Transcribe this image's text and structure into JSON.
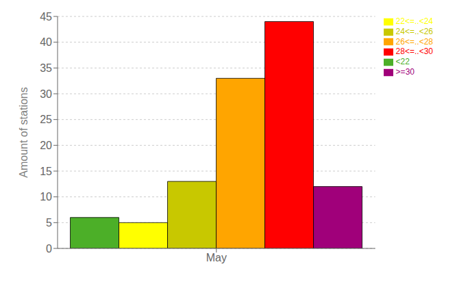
{
  "chart_data": {
    "type": "bar",
    "categories": [
      "May"
    ],
    "series": [
      {
        "name": "<22",
        "color": "#4caf28",
        "values": [
          6
        ]
      },
      {
        "name": "22<=..<24",
        "color": "#ffff00",
        "values": [
          5
        ]
      },
      {
        "name": "24<=..<26",
        "color": "#c8c800",
        "values": [
          13
        ]
      },
      {
        "name": "26<=..<28",
        "color": "#ffa500",
        "values": [
          33
        ]
      },
      {
        "name": "28<=..<30",
        "color": "#ff0000",
        "values": [
          44
        ]
      },
      {
        "name": ">=30",
        "color": "#a0007a",
        "values": [
          12
        ]
      }
    ],
    "ylabel": "Amount of stations",
    "ylim": [
      0,
      45
    ],
    "yticks": [
      0,
      5,
      10,
      15,
      20,
      25,
      30,
      35,
      40,
      45
    ],
    "grid": true,
    "legend": "upper right"
  }
}
